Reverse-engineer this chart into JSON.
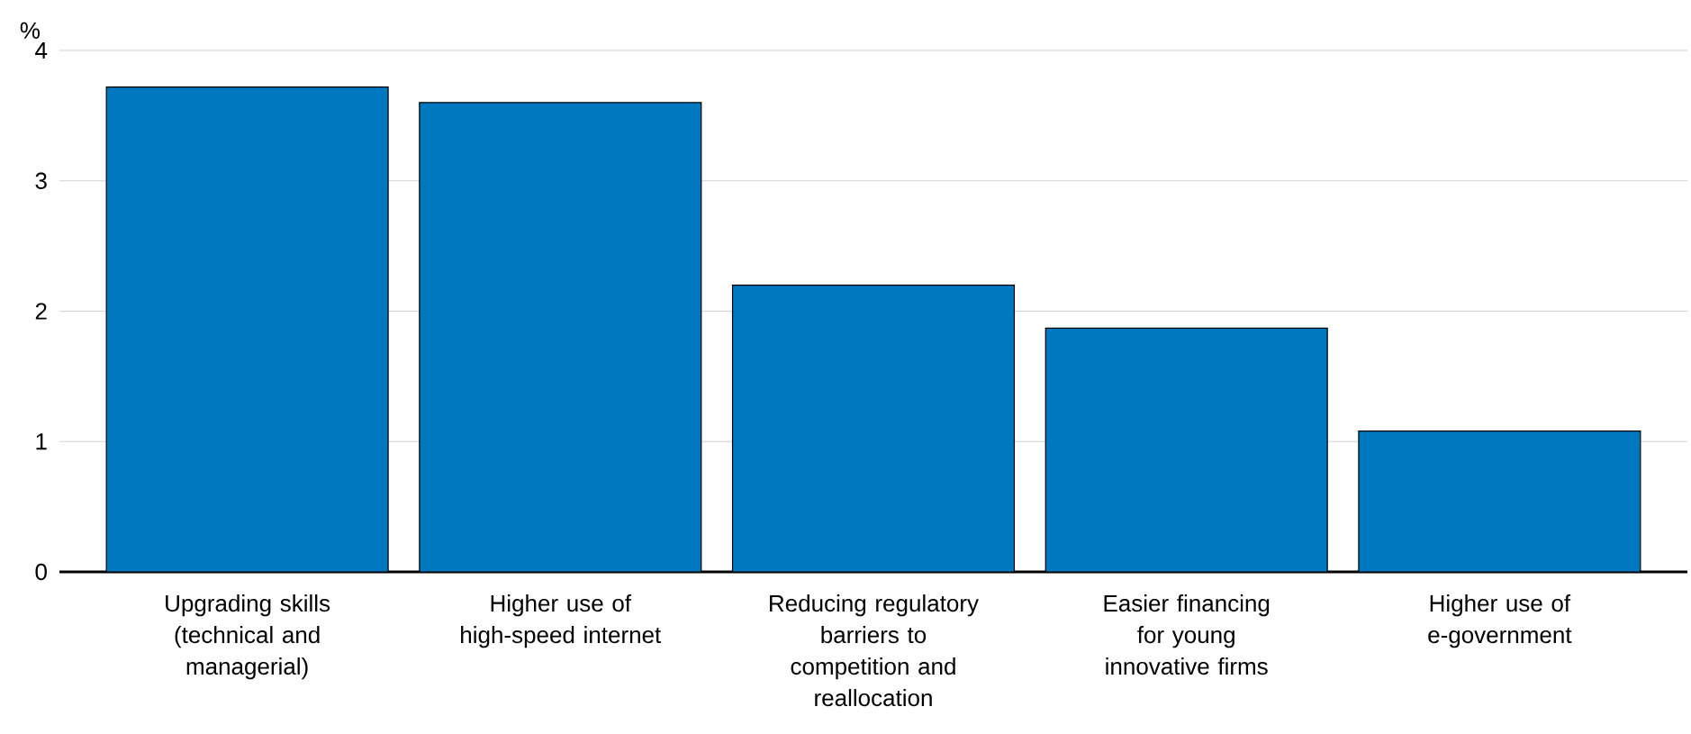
{
  "chart_data": {
    "type": "bar",
    "ylabel": "%",
    "categories": [
      "Upgrading skills (technical and managerial)",
      "Higher use of high-speed internet",
      "Reducing regulatory barriers to competition and reallocation",
      "Easier financing for young innovative firms",
      "Higher use of e-government"
    ],
    "values": [
      3.72,
      3.6,
      2.2,
      1.87,
      1.08
    ],
    "color": "#0078bf",
    "ylim": [
      0,
      4
    ],
    "yticks": [
      0,
      1,
      2,
      3,
      4
    ],
    "grid": "y"
  }
}
